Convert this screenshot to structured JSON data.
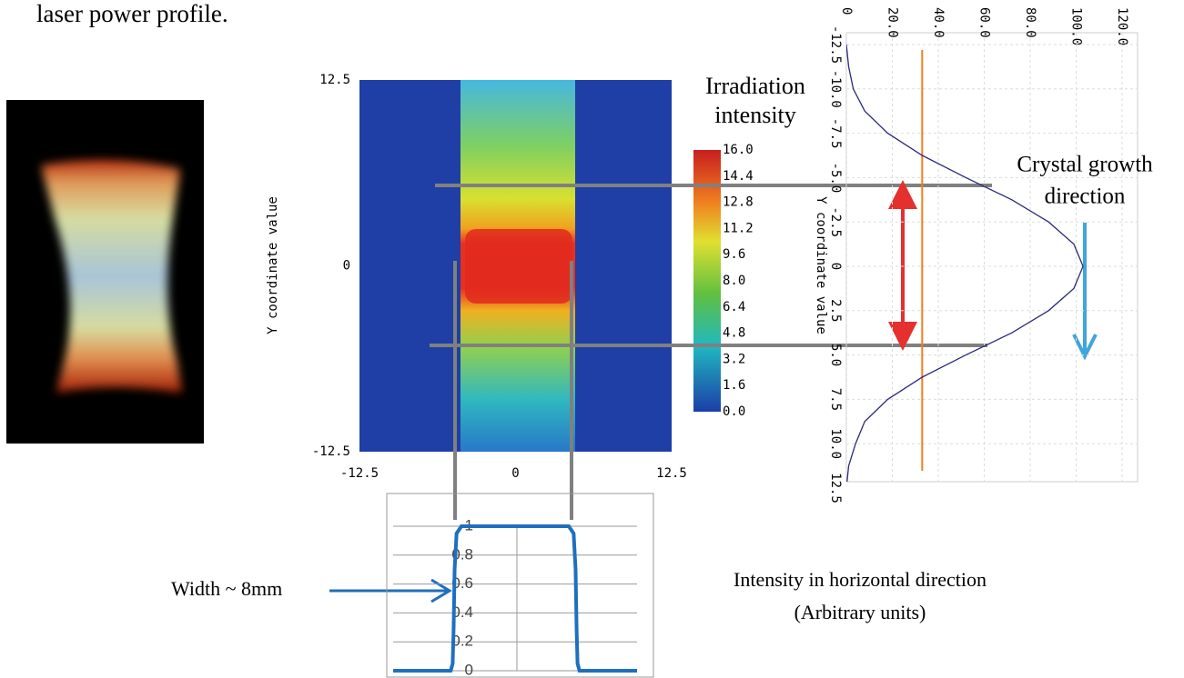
{
  "caption": "laser power profile.",
  "chart_data": [
    {
      "type": "heatmap",
      "ylabel": "Y coordinate value",
      "xlim": [
        -12.5,
        12.5
      ],
      "xticks": [
        -12.5,
        0,
        12.5
      ],
      "ylim": [
        -12.5,
        12.5
      ],
      "yticks": [
        -12.5,
        0,
        12.5
      ],
      "colorbar_label": [
        "Irradiation",
        "intensity"
      ],
      "clim": [
        0,
        16
      ],
      "colorbar_ticks": [
        {
          "value": 16,
          "label": "16.0"
        },
        14.4,
        12.8,
        11.2,
        9.6,
        {
          "value": 8,
          "label": "8.0"
        },
        6.4,
        4.8,
        3.2,
        1.6,
        {
          "value": 0,
          "label": "0.0"
        }
      ]
    },
    {
      "type": "line",
      "orientation": "vertical",
      "ylabel": "Y coordinate value",
      "x": [
        -12.5,
        -11.25,
        -10,
        -8.75,
        -7.5,
        -6.25,
        -5,
        -3.75,
        -2.5,
        -1.25,
        0,
        1.25,
        2.5,
        3.75,
        5,
        6.25,
        7.5,
        8.75,
        10,
        11.25,
        12.5
      ],
      "series": [
        {
          "color": "#2a2a7a",
          "values": [
            0,
            1,
            3,
            8,
            18,
            33,
            52,
            72,
            88,
            99,
            103,
            99,
            88,
            72,
            52,
            33,
            18,
            8,
            4,
            1,
            0
          ]
        }
      ],
      "ylim": [
        0,
        120
      ],
      "yticks": [
        0,
        {
          "value": 20,
          "label": "20.0"
        },
        {
          "value": 40,
          "label": "40.0"
        },
        {
          "value": 60,
          "label": "60.0"
        },
        {
          "value": 80,
          "label": "80.0"
        },
        {
          "value": 100,
          "label": "100.0"
        },
        {
          "value": 120,
          "label": "120.0"
        }
      ],
      "xlim": [
        -12.5,
        12.5
      ],
      "xticks": [
        -12.5,
        {
          "value": -10,
          "label": "-10.0"
        },
        -7.5,
        {
          "value": -5,
          "label": "-5.0"
        },
        -2.5,
        0,
        2.5,
        {
          "value": 5,
          "label": "5.0"
        },
        7.5,
        {
          "value": 10,
          "label": "10.0"
        },
        12.5
      ],
      "reference_line": {
        "value": 33,
        "color": "#f07f1a"
      },
      "grid": true,
      "annotation": [
        "Crystal growth",
        "direction"
      ]
    },
    {
      "type": "line",
      "x": [
        -12.5,
        -6.6,
        -6.4,
        -6.3,
        -6.2,
        -6.0,
        -5.5,
        0,
        5.5,
        6.0,
        6.2,
        6.3,
        6.4,
        6.6,
        12.5
      ],
      "xlim": [
        -12.5,
        12.5
      ],
      "series": [
        {
          "color": "#1f6fbf",
          "values": [
            0,
            0,
            0.05,
            0.3,
            0.7,
            0.95,
            1,
            1,
            1,
            0.95,
            0.7,
            0.3,
            0.05,
            0,
            0
          ]
        }
      ],
      "ylim": [
        0,
        1
      ],
      "yticks": [
        0,
        0.2,
        0.4,
        0.6,
        0.8,
        1
      ],
      "grid": true,
      "annotation": "Width ~ 8mm",
      "caption": [
        "Intensity in horizontal direction",
        "(Arbitrary units)"
      ]
    }
  ]
}
